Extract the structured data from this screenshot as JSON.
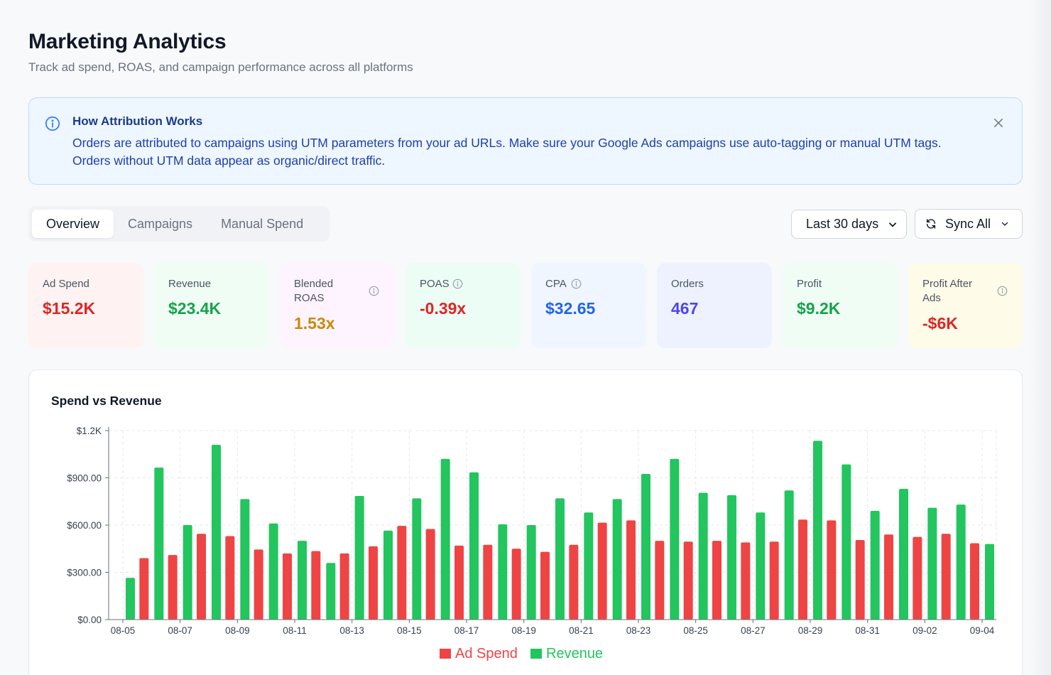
{
  "header": {
    "title": "Marketing Analytics",
    "subtitle": "Track ad spend, ROAS, and campaign performance across all platforms"
  },
  "banner": {
    "title": "How Attribution Works",
    "text": "Orders are attributed to campaigns using UTM parameters from your ad URLs. Make sure your Google Ads campaigns use auto-tagging or manual UTM tags. Orders without UTM data appear as organic/direct traffic.",
    "icon": "info-icon",
    "close_icon": "close-icon"
  },
  "tabs": [
    {
      "label": "Overview",
      "active": true
    },
    {
      "label": "Campaigns",
      "active": false
    },
    {
      "label": "Manual Spend",
      "active": false
    }
  ],
  "controls": {
    "date_range": "Last 30 days",
    "sync_label": "Sync All"
  },
  "kpis": [
    {
      "label": "Ad Spend",
      "value": "$15.2K",
      "color": "#dc2626",
      "bg": "#fef2f2",
      "info": false
    },
    {
      "label": "Revenue",
      "value": "$23.4K",
      "color": "#16a34a",
      "bg": "#f0fdf4",
      "info": false
    },
    {
      "label": "Blended ROAS",
      "value": "1.53x",
      "color": "#ca8a04",
      "bg": "#fdf4ff",
      "info": true
    },
    {
      "label": "POAS",
      "value": "-0.39x",
      "color": "#dc2626",
      "bg": "#ecfdf5",
      "info": true
    },
    {
      "label": "CPA",
      "value": "$32.65",
      "color": "#2563eb",
      "bg": "#eff6ff",
      "info": true
    },
    {
      "label": "Orders",
      "value": "467",
      "color": "#4f46e5",
      "bg": "#eef2ff",
      "info": false
    },
    {
      "label": "Profit",
      "value": "$9.2K",
      "color": "#16a34a",
      "bg": "#f0fdf4",
      "info": false
    },
    {
      "label": "Profit After Ads",
      "value": "-$6K",
      "color": "#dc2626",
      "bg": "#fefce8",
      "info": true
    }
  ],
  "chart_title": "Spend vs Revenue",
  "chart_data": {
    "type": "bar",
    "title": "Spend vs Revenue",
    "xlabel": "",
    "ylabel": "",
    "ylim": [
      0,
      1200
    ],
    "yticks": [
      "$0.00",
      "$300.00",
      "$600.00",
      "$900.00",
      "$1.2K"
    ],
    "categories": [
      "08-05",
      "08-06",
      "08-07",
      "08-08",
      "08-09",
      "08-10",
      "08-11",
      "08-12",
      "08-13",
      "08-14",
      "08-15",
      "08-16",
      "08-17",
      "08-18",
      "08-19",
      "08-20",
      "08-21",
      "08-22",
      "08-23",
      "08-24",
      "08-25",
      "08-26",
      "08-27",
      "08-28",
      "08-29",
      "08-30",
      "08-31",
      "09-01",
      "09-02",
      "09-03",
      "09-04"
    ],
    "xtick_labels": [
      "08-05",
      "08-07",
      "08-09",
      "08-11",
      "08-13",
      "08-15",
      "08-17",
      "08-19",
      "08-21",
      "08-23",
      "08-25",
      "08-27",
      "08-29",
      "08-31",
      "09-02",
      "09-04"
    ],
    "grid": true,
    "legend": "bottom-center",
    "series": [
      {
        "name": "Ad Spend",
        "color": "#ef4444",
        "values": [
          0,
          390,
          410,
          545,
          530,
          445,
          420,
          435,
          420,
          465,
          595,
          575,
          470,
          475,
          450,
          430,
          475,
          615,
          630,
          500,
          495,
          500,
          490,
          495,
          635,
          630,
          505,
          540,
          525,
          545,
          485
        ]
      },
      {
        "name": "Revenue",
        "color": "#22c55e",
        "values": [
          265,
          965,
          600,
          1110,
          765,
          610,
          500,
          360,
          785,
          565,
          770,
          1020,
          935,
          605,
          600,
          770,
          680,
          765,
          925,
          1020,
          805,
          790,
          680,
          820,
          1135,
          985,
          690,
          830,
          710,
          730,
          480
        ]
      }
    ]
  }
}
